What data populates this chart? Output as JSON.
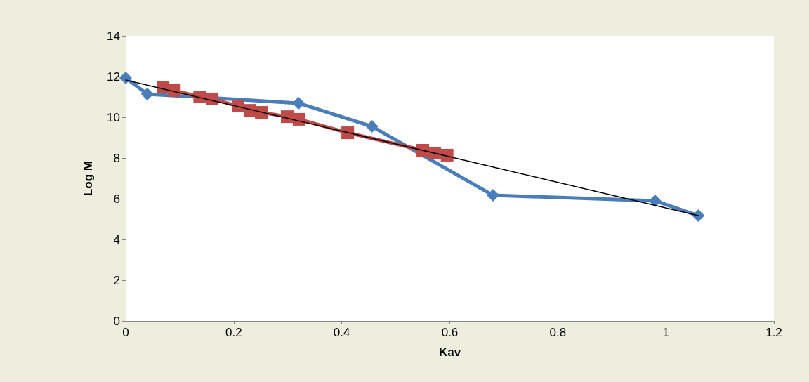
{
  "chart_data": {
    "type": "line",
    "xlabel": "Kav",
    "ylabel": "Log M",
    "xlim": [
      0,
      1.2
    ],
    "xticks": [
      0,
      0.2,
      0.4,
      0.6,
      0.8,
      1,
      1.2
    ],
    "ylim": [
      0,
      14
    ],
    "yticks": [
      0,
      2,
      4,
      6,
      8,
      10,
      12,
      14
    ],
    "grid": false,
    "series": [
      {
        "color": "#4a7ebb",
        "marker": "diamond",
        "x": [
          0,
          0.04,
          0.32,
          0.456,
          0.68,
          0.98,
          1.06
        ],
        "values": [
          11.93,
          11.14,
          10.69,
          9.55,
          6.17,
          5.9,
          5.17
        ]
      },
      {
        "color": "#be4b48",
        "marker": "square",
        "x": [
          0.069,
          0.09,
          0.137,
          0.16,
          0.208,
          0.23,
          0.251,
          0.299,
          0.321,
          0.411,
          0.55,
          0.572,
          0.595
        ],
        "values": [
          11.48,
          11.31,
          11.0,
          10.9,
          10.55,
          10.34,
          10.24,
          10.03,
          9.9,
          9.24,
          8.38,
          8.24,
          8.14
        ]
      },
      {
        "color": "#000000",
        "marker": "none",
        "x": [
          0,
          1.06
        ],
        "values": [
          11.83,
          5.17
        ]
      }
    ]
  }
}
